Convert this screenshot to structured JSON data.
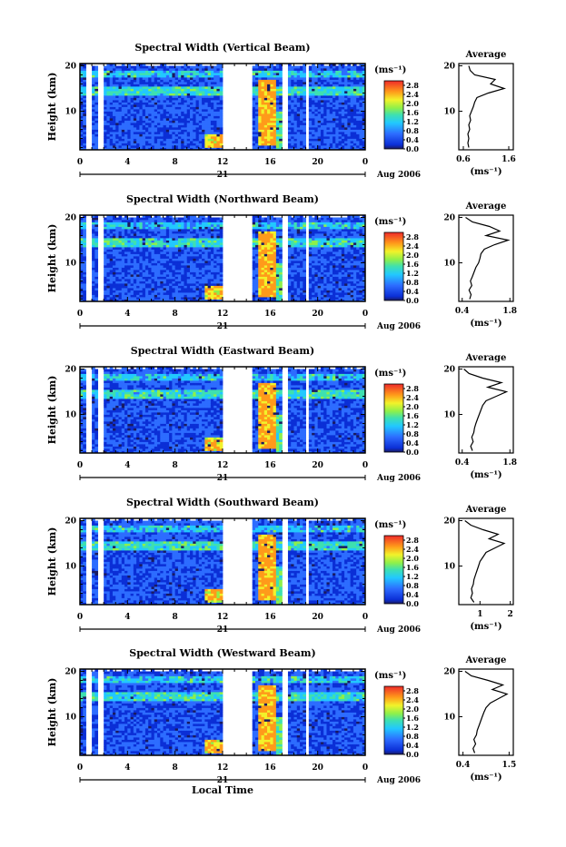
{
  "chart_data": [
    {
      "type": "heatmap",
      "title": "Spectral Width (Vertical Beam)",
      "ylabel": "Height (km)",
      "xlabel": "",
      "x_ticks": [
        "0",
        "4",
        "8",
        "12",
        "16",
        "20",
        "0"
      ],
      "y_ticks": [
        "20",
        "10"
      ],
      "xlim": [
        0,
        24
      ],
      "ylim": [
        1.5,
        20.5
      ],
      "day_label": "21",
      "date_label": "Aug 2006",
      "colorbar": {
        "unit": "(ms⁻¹)",
        "ticks": [
          "2.8",
          "2.4",
          "2.0",
          "1.6",
          "1.2",
          "0.8",
          "0.4",
          "0.0"
        ],
        "range": [
          0.0,
          3.0
        ]
      },
      "data_gaps_hours": [
        [
          0.4,
          1.0
        ],
        [
          1.6,
          2.0
        ],
        [
          12.0,
          14.5
        ],
        [
          17.0,
          17.6
        ],
        [
          19.0,
          19.3
        ]
      ],
      "average_profile": {
        "title": "Average",
        "xlabel": "(ms⁻¹)",
        "x_ticks": [
          "0.6",
          "1.6"
        ],
        "y_ticks": [
          "20",
          "10"
        ],
        "xlim": [
          0.5,
          1.7
        ],
        "heights_km": [
          2,
          3,
          4,
          5,
          6,
          7,
          8,
          9,
          10,
          11,
          12,
          13,
          14,
          15,
          16,
          17,
          18,
          19,
          20
        ],
        "values": [
          0.72,
          0.7,
          0.72,
          0.7,
          0.74,
          0.72,
          0.76,
          0.74,
          0.78,
          0.82,
          0.85,
          0.9,
          1.15,
          1.5,
          1.2,
          1.3,
          0.85,
          0.75,
          0.72
        ]
      }
    },
    {
      "type": "heatmap",
      "title": "Spectral Width (Northward Beam)",
      "ylabel": "Height (km)",
      "xlabel": "",
      "x_ticks": [
        "0",
        "4",
        "8",
        "12",
        "16",
        "20",
        "0"
      ],
      "y_ticks": [
        "20",
        "10"
      ],
      "xlim": [
        0,
        24
      ],
      "ylim": [
        1.5,
        20.5
      ],
      "day_label": "21",
      "date_label": "Aug 2006",
      "colorbar": {
        "unit": "(ms⁻¹)",
        "ticks": [
          "2.8",
          "2.4",
          "2.0",
          "1.6",
          "1.2",
          "0.8",
          "0.4",
          "0.0"
        ],
        "range": [
          0.0,
          3.0
        ]
      },
      "data_gaps_hours": [
        [
          0.4,
          1.0
        ],
        [
          1.6,
          2.0
        ],
        [
          12.0,
          14.5
        ],
        [
          17.0,
          17.6
        ],
        [
          19.0,
          19.3
        ]
      ],
      "average_profile": {
        "title": "Average",
        "xlabel": "(ms⁻¹)",
        "x_ticks": [
          "0.4",
          "1.8"
        ],
        "y_ticks": [
          "20",
          "10"
        ],
        "xlim": [
          0.3,
          1.9
        ],
        "heights_km": [
          2,
          3,
          4,
          5,
          6,
          7,
          8,
          9,
          10,
          11,
          12,
          13,
          14,
          15,
          16,
          17,
          18,
          19,
          20
        ],
        "values": [
          0.62,
          0.66,
          0.6,
          0.68,
          0.64,
          0.7,
          0.75,
          0.8,
          0.88,
          0.92,
          0.95,
          1.05,
          1.35,
          1.75,
          1.1,
          1.5,
          1.2,
          0.7,
          0.5
        ]
      }
    },
    {
      "type": "heatmap",
      "title": "Spectral Width (Eastward Beam)",
      "ylabel": "Height (km)",
      "xlabel": "",
      "x_ticks": [
        "0",
        "4",
        "8",
        "12",
        "16",
        "20",
        "0"
      ],
      "y_ticks": [
        "20",
        "10"
      ],
      "xlim": [
        0,
        24
      ],
      "ylim": [
        1.5,
        20.5
      ],
      "day_label": "21",
      "date_label": "Aug 2006",
      "colorbar": {
        "unit": "(ms⁻¹)",
        "ticks": [
          "2.8",
          "2.4",
          "2.0",
          "1.6",
          "1.2",
          "0.8",
          "0.4",
          "0.0"
        ],
        "range": [
          0.0,
          3.0
        ]
      },
      "data_gaps_hours": [
        [
          0.4,
          1.0
        ],
        [
          1.6,
          2.0
        ],
        [
          12.0,
          14.5
        ],
        [
          17.0,
          17.6
        ],
        [
          19.0,
          19.3
        ]
      ],
      "average_profile": {
        "title": "Average",
        "xlabel": "(ms⁻¹)",
        "x_ticks": [
          "0.4",
          "1.8"
        ],
        "y_ticks": [
          "20",
          "10"
        ],
        "xlim": [
          0.3,
          1.9
        ],
        "heights_km": [
          2,
          3,
          4,
          5,
          6,
          7,
          8,
          9,
          10,
          11,
          12,
          13,
          14,
          15,
          16,
          17,
          18,
          19,
          20
        ],
        "values": [
          0.7,
          0.65,
          0.72,
          0.68,
          0.74,
          0.76,
          0.8,
          0.85,
          0.9,
          0.95,
          1.0,
          1.1,
          1.4,
          1.7,
          1.15,
          1.55,
          1.0,
          0.6,
          0.45
        ]
      }
    },
    {
      "type": "heatmap",
      "title": "Spectral Width (Southward Beam)",
      "ylabel": "Height (km)",
      "xlabel": "",
      "x_ticks": [
        "0",
        "4",
        "8",
        "12",
        "16",
        "20",
        "0"
      ],
      "y_ticks": [
        "20",
        "10"
      ],
      "xlim": [
        0,
        24
      ],
      "ylim": [
        1.5,
        20.5
      ],
      "day_label": "21",
      "date_label": "Aug 2006",
      "colorbar": {
        "unit": "(ms⁻¹)",
        "ticks": [
          "2.8",
          "2.4",
          "2.0",
          "1.6",
          "1.2",
          "0.8",
          "0.4",
          "0.0"
        ],
        "range": [
          0.0,
          3.0
        ]
      },
      "data_gaps_hours": [
        [
          0.4,
          1.0
        ],
        [
          1.6,
          2.0
        ],
        [
          12.0,
          14.5
        ],
        [
          17.0,
          17.6
        ],
        [
          19.0,
          19.3
        ]
      ],
      "average_profile": {
        "title": "Average",
        "xlabel": "(ms⁻¹)",
        "x_ticks": [
          "1",
          "2"
        ],
        "y_ticks": [
          "20",
          "10"
        ],
        "xlim": [
          0.3,
          2.1
        ],
        "heights_km": [
          2,
          3,
          4,
          5,
          6,
          7,
          8,
          9,
          10,
          11,
          12,
          13,
          14,
          15,
          16,
          17,
          18,
          19,
          20
        ],
        "values": [
          0.8,
          0.7,
          0.75,
          0.72,
          0.78,
          0.8,
          0.85,
          0.9,
          0.95,
          1.0,
          1.1,
          1.2,
          1.5,
          1.8,
          1.3,
          1.6,
          1.1,
          0.7,
          0.5
        ]
      }
    },
    {
      "type": "heatmap",
      "title": "Spectral Width (Westward Beam)",
      "ylabel": "Height (km)",
      "xlabel": "Local Time",
      "x_ticks": [
        "0",
        "4",
        "8",
        "12",
        "16",
        "20",
        "0"
      ],
      "y_ticks": [
        "20",
        "10"
      ],
      "xlim": [
        0,
        24
      ],
      "ylim": [
        1.5,
        20.5
      ],
      "day_label": "21",
      "date_label": "Aug 2006",
      "colorbar": {
        "unit": "(ms⁻¹)",
        "ticks": [
          "2.8",
          "2.4",
          "2.0",
          "1.6",
          "1.2",
          "0.8",
          "0.4",
          "0.0"
        ],
        "range": [
          0.0,
          3.0
        ]
      },
      "data_gaps_hours": [
        [
          0.4,
          1.0
        ],
        [
          1.6,
          2.0
        ],
        [
          12.0,
          14.5
        ],
        [
          17.0,
          17.6
        ],
        [
          19.0,
          19.3
        ]
      ],
      "average_profile": {
        "title": "Average",
        "xlabel": "(ms⁻¹)",
        "x_ticks": [
          "0.4",
          "1.5"
        ],
        "y_ticks": [
          "20",
          "10"
        ],
        "xlim": [
          0.3,
          1.6
        ],
        "heights_km": [
          2,
          3,
          4,
          5,
          6,
          7,
          8,
          9,
          10,
          11,
          12,
          13,
          14,
          15,
          16,
          17,
          18,
          19,
          20
        ],
        "values": [
          0.68,
          0.64,
          0.7,
          0.66,
          0.72,
          0.74,
          0.78,
          0.82,
          0.86,
          0.9,
          0.95,
          1.05,
          1.25,
          1.45,
          1.1,
          1.35,
          1.0,
          0.6,
          0.45
        ]
      }
    }
  ]
}
